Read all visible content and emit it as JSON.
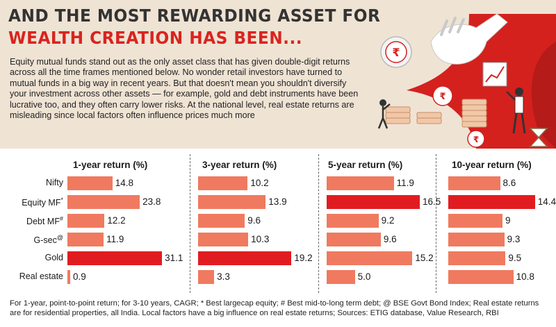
{
  "header": {
    "title_line1": "AND THE MOST REWARDING ASSET FOR",
    "title_line2": "WEALTH CREATION HAS BEEN...",
    "intro": "Equity mutual funds stand out as the only asset class that has given double-digit returns across all the time frames mentioned below. No wonder retail investors have turned to mutual funds in a big way in recent years. But that doesn't mean you shouldn't diversify your investment across other assets — for example, gold and debt instruments have been lucrative too, and they often carry lower risks. At the national level, real estate returns are misleading since local factors often influence prices much more"
  },
  "colors": {
    "bar": "#f07a5f",
    "bar_highlight": "#e11c21",
    "title_red": "#d9241f",
    "title_dark": "#333333",
    "background_top": "#efe3d4"
  },
  "icons": [
    "rupee-coin-icon",
    "coin-stack-icon",
    "hand-icon",
    "businessman-icon",
    "hourglass-icon",
    "growth-chart-icon",
    "leaf-icon"
  ],
  "chart_data": {
    "type": "bar",
    "orientation": "horizontal",
    "categories": [
      "Nifty",
      "Equity MF",
      "Debt MF",
      "G-sec",
      "Gold",
      "Real estate"
    ],
    "category_marks": [
      "",
      "*",
      "#",
      "@",
      "",
      ""
    ],
    "series": [
      {
        "name": "1-year return (%)",
        "values": [
          14.8,
          23.8,
          12.2,
          11.9,
          31.1,
          0.9
        ],
        "highlight_index": 4
      },
      {
        "name": "3-year return (%)",
        "values": [
          10.2,
          13.9,
          9.6,
          10.3,
          19.2,
          3.3
        ],
        "highlight_index": 4
      },
      {
        "name": "5-year return (%)",
        "values": [
          11.9,
          16.5,
          9.2,
          9.6,
          15.2,
          5.0
        ],
        "highlight_index": 1
      },
      {
        "name": "10-year return (%)",
        "values": [
          8.6,
          14.4,
          9.0,
          9.3,
          9.5,
          10.8
        ],
        "highlight_index": 1
      }
    ],
    "value_labels": [
      [
        "14.8",
        "23.8",
        "12.2",
        "11.9",
        "31.1",
        "0.9"
      ],
      [
        "10.2",
        "13.9",
        "9.6",
        "10.3",
        "19.2",
        "3.3"
      ],
      [
        "11.9",
        "16.5",
        "9.2",
        "9.6",
        "15.2",
        "5.0"
      ],
      [
        "8.6",
        "14.4",
        "9",
        "9.3",
        "9.5",
        "10.8"
      ]
    ],
    "grid": false,
    "legend": "none"
  },
  "footnote": "For 1-year, point-to-point return; for 3-10 years, CAGR; * Best largecap equity; # Best mid-to-long term debt; @ BSE Govt Bond Index; Real estate returns are for residential properties, all India. Local factors have a big influence on real estate returns; Sources: ETIG database, Value Research, RBI"
}
